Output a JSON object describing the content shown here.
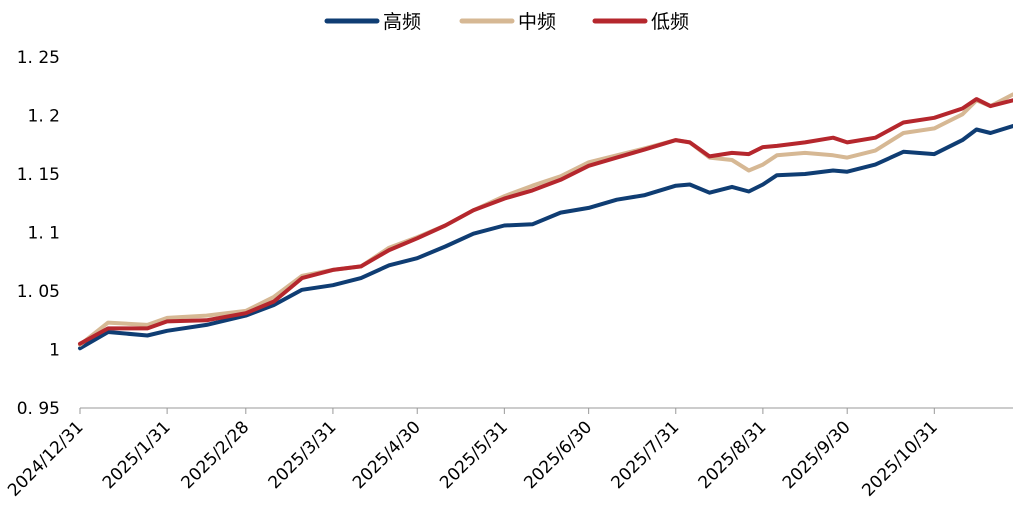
{
  "chart_data": {
    "type": "line",
    "x": [
      "2024/12/31",
      "2025/1/10",
      "2025/1/24",
      "2025/1/31",
      "2025/2/14",
      "2025/2/28",
      "2025/3/10",
      "2025/3/20",
      "2025/3/31",
      "2025/4/10",
      "2025/4/20",
      "2025/4/30",
      "2025/5/10",
      "2025/5/20",
      "2025/5/31",
      "2025/6/10",
      "2025/6/20",
      "2025/6/30",
      "2025/7/10",
      "2025/7/20",
      "2025/7/31",
      "2025/8/5",
      "2025/8/12",
      "2025/8/20",
      "2025/8/26",
      "2025/8/31",
      "2025/9/5",
      "2025/9/15",
      "2025/9/25",
      "2025/9/30",
      "2025/10/10",
      "2025/10/20",
      "2025/10/31",
      "2025/11/10",
      "2025/11/15",
      "2025/11/20",
      "2025/11/28"
    ],
    "series": [
      {
        "name": "高频",
        "color": "#0f3d73",
        "values": [
          1.001,
          1.015,
          1.012,
          1.016,
          1.021,
          1.029,
          1.038,
          1.051,
          1.055,
          1.061,
          1.072,
          1.078,
          1.088,
          1.099,
          1.106,
          1.107,
          1.117,
          1.121,
          1.128,
          1.132,
          1.14,
          1.141,
          1.134,
          1.139,
          1.135,
          1.141,
          1.149,
          1.15,
          1.153,
          1.152,
          1.158,
          1.169,
          1.167,
          1.179,
          1.188,
          1.185,
          1.191
        ]
      },
      {
        "name": "中频",
        "color": "#d6b894",
        "values": [
          1.004,
          1.023,
          1.021,
          1.027,
          1.029,
          1.033,
          1.045,
          1.063,
          1.068,
          1.071,
          1.087,
          1.096,
          1.106,
          1.119,
          1.131,
          1.14,
          1.148,
          1.16,
          1.166,
          1.172,
          1.179,
          1.177,
          1.164,
          1.162,
          1.153,
          1.158,
          1.166,
          1.168,
          1.166,
          1.164,
          1.17,
          1.185,
          1.189,
          1.201,
          1.213,
          1.208,
          1.218
        ]
      },
      {
        "name": "低频",
        "color": "#b5272d",
        "values": [
          1.005,
          1.018,
          1.018,
          1.024,
          1.025,
          1.031,
          1.041,
          1.061,
          1.068,
          1.071,
          1.085,
          1.095,
          1.106,
          1.119,
          1.129,
          1.136,
          1.145,
          1.157,
          1.164,
          1.171,
          1.179,
          1.177,
          1.165,
          1.168,
          1.167,
          1.173,
          1.174,
          1.177,
          1.181,
          1.177,
          1.181,
          1.194,
          1.198,
          1.206,
          1.214,
          1.208,
          1.213
        ]
      }
    ],
    "xlim": [
      "2024/12/31",
      "2025/11/28"
    ],
    "xticks": [
      "2024/12/31",
      "2025/1/31",
      "2025/2/28",
      "2025/3/31",
      "2025/4/30",
      "2025/5/31",
      "2025/6/30",
      "2025/7/31",
      "2025/8/31",
      "2025/9/30",
      "2025/10/31"
    ],
    "ylim": [
      0.95,
      1.25
    ],
    "yticks": [
      {
        "value": 0.95,
        "label": "0. 95"
      },
      1,
      {
        "value": 1.05,
        "label": "1. 05"
      },
      {
        "value": 1.1,
        "label": "1. 1"
      },
      {
        "value": 1.15,
        "label": "1. 15"
      },
      {
        "value": 1.2,
        "label": "1. 2"
      },
      {
        "value": 1.25,
        "label": "1. 25"
      }
    ],
    "legend": "top"
  }
}
